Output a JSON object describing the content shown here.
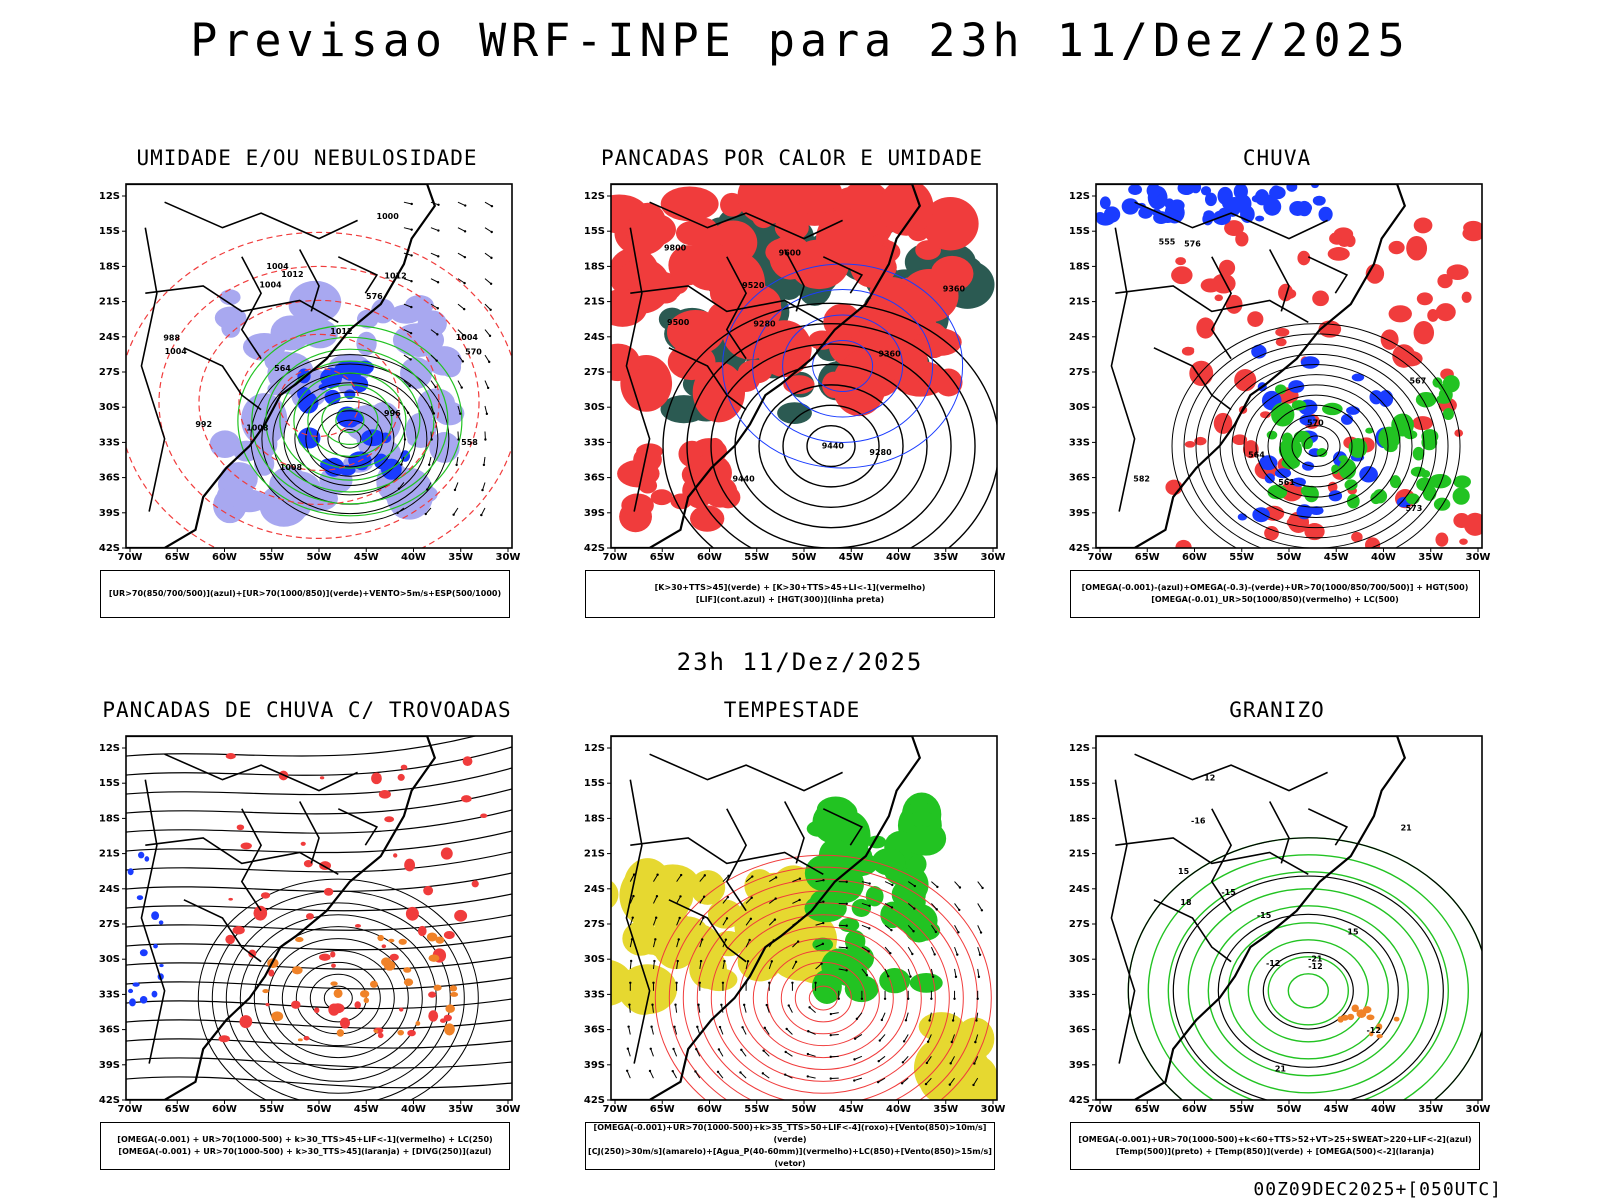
{
  "header": {
    "title": "Previsao WRF-INPE  para 23h 11/Dez/2025"
  },
  "middle": {
    "title": "23h 11/Dez/2025"
  },
  "footer": {
    "text": "00Z09DEC2025+[050UTC]"
  },
  "axes": {
    "lat_labels": [
      "12S",
      "15S",
      "18S",
      "21S",
      "24S",
      "27S",
      "30S",
      "33S",
      "36S",
      "39S",
      "42S"
    ],
    "lon_labels": [
      "70W",
      "65W",
      "60W",
      "55W",
      "50W",
      "45W",
      "40W",
      "35W",
      "30W"
    ]
  },
  "colors": {
    "red": "#f03c3c",
    "green": "#22c322",
    "blue": "#1a3cff",
    "lightblue": "#a8a8f0",
    "yellow": "#e6d830",
    "darkteal": "#2b5a52",
    "orange": "#f08228"
  },
  "panels": [
    {
      "id": "umidade",
      "title": "UMIDADE E/OU NEBULOSIDADE",
      "legend": [
        "[UR>70(850/700/500)](azul)+[UR>70(1000/850)](verde)+VENTO>5m/s+ESP(500/1000)"
      ],
      "labels": [
        "1008",
        "1012",
        "1012",
        "1012",
        "1008",
        "1004",
        "1004",
        "996",
        "992",
        "988",
        "1000",
        "1004",
        "1004",
        "576",
        "570",
        "564",
        "558"
      ]
    },
    {
      "id": "pancadas-calor",
      "title": "PANCADAS POR CALOR E UMIDADE",
      "legend": [
        "[K>30+TTS>45](verde) + [K>30+TTS>45+LI<-1](vermelho)",
        "[LIF](cont.azul) + [HGT(300)](linha preta)"
      ],
      "labels": [
        "9600",
        "9800",
        "9520",
        "9500",
        "9440",
        "9440",
        "9360",
        "9360",
        "9280",
        "9280"
      ]
    },
    {
      "id": "chuva",
      "title": "CHUVA",
      "legend": [
        "[OMEGA(-0.001)-(azul)+OMEGA(-0.3)-(verde)+UR>70(1000/850/700/500)] + HGT(500)",
        "[OMEGA(-0.01)_UR>50(1000/850)(vermelho) + LC(500)"
      ],
      "labels": [
        "582",
        "576",
        "570",
        "567",
        "561",
        "555",
        "564",
        "573"
      ]
    },
    {
      "id": "pancadas-trovoadas",
      "title": "PANCADAS DE CHUVA C/ TROVOADAS",
      "legend": [
        "[OMEGA(-0.001) + UR>70(1000-500) + k>30_TTS>45+LIF<-1](vermelho) + LC(250)",
        "[OMEGA(-0.001) + UR>70(1000-500) + k>30_TTS>45](laranja) + [DIVG(250)](azul)"
      ],
      "labels": []
    },
    {
      "id": "tempestade",
      "title": "TEMPESTADE",
      "legend": [
        "[OMEGA(-0.001)+UR>70(1000-500)+k>35_TTS>50+LIF<-4](roxo)+[Vento(850)>10m/s](verde)",
        "[CJ(250)>30m/s](amarelo)+[Agua_P(40-60mm)](vermelho)+LC(850)+[Vento(850)>15m/s](vetor)"
      ],
      "labels": []
    },
    {
      "id": "granizo",
      "title": "GRANIZO",
      "legend": [
        "[OMEGA(-0.001)+UR>70(1000-500)+k<60+TTS>52+VT>25+SWEAT>220+LIF<-2](azul)",
        "[Temp(500)](preto) + [Temp(850)](verde) + [OMEGA(500)<-2](laranja)"
      ],
      "labels": [
        "-21",
        "21",
        "-16",
        "21",
        "-12",
        "12",
        "15",
        "-15",
        "15",
        "-12",
        "18",
        "-15",
        "-12"
      ]
    }
  ]
}
